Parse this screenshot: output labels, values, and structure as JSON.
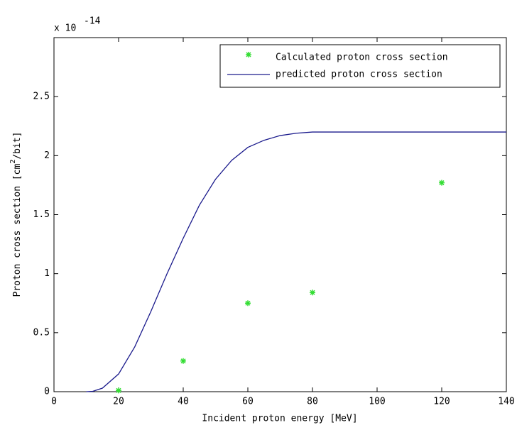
{
  "chart_data": {
    "type": "line",
    "x_label": "Incident proton energy [MeV]",
    "y_label": {
      "before": "Proton cross section [cm",
      "sup": "2",
      "after": "/bit]"
    },
    "y_multiplier": {
      "base": "x 10",
      "exponent": "-14"
    },
    "xlim": [
      0,
      140
    ],
    "xticks": [
      0,
      20,
      40,
      60,
      80,
      100,
      120,
      140
    ],
    "ylim": [
      0,
      3
    ],
    "yticks": [
      0,
      0.5,
      1,
      1.5,
      2,
      2.5
    ],
    "legend": "upper right",
    "series": [
      {
        "name": "Calculated proton cross section",
        "color": "#33dd33",
        "type": "scatter",
        "x": [
          20,
          40,
          60,
          80,
          120
        ],
        "values": [
          0.01,
          0.26,
          0.75,
          0.84,
          1.77
        ]
      },
      {
        "name": "predicted proton cross section",
        "color": "#1a1a8c",
        "type": "line",
        "x": [
          10,
          12,
          15,
          20,
          25,
          30,
          35,
          40,
          45,
          50,
          55,
          60,
          65,
          70,
          75,
          80,
          90,
          100,
          120,
          140
        ],
        "values": [
          0,
          0.003,
          0.03,
          0.15,
          0.38,
          0.68,
          1.0,
          1.3,
          1.58,
          1.8,
          1.96,
          2.07,
          2.13,
          2.17,
          2.19,
          2.2,
          2.2,
          2.2,
          2.2,
          2.2
        ]
      }
    ]
  }
}
